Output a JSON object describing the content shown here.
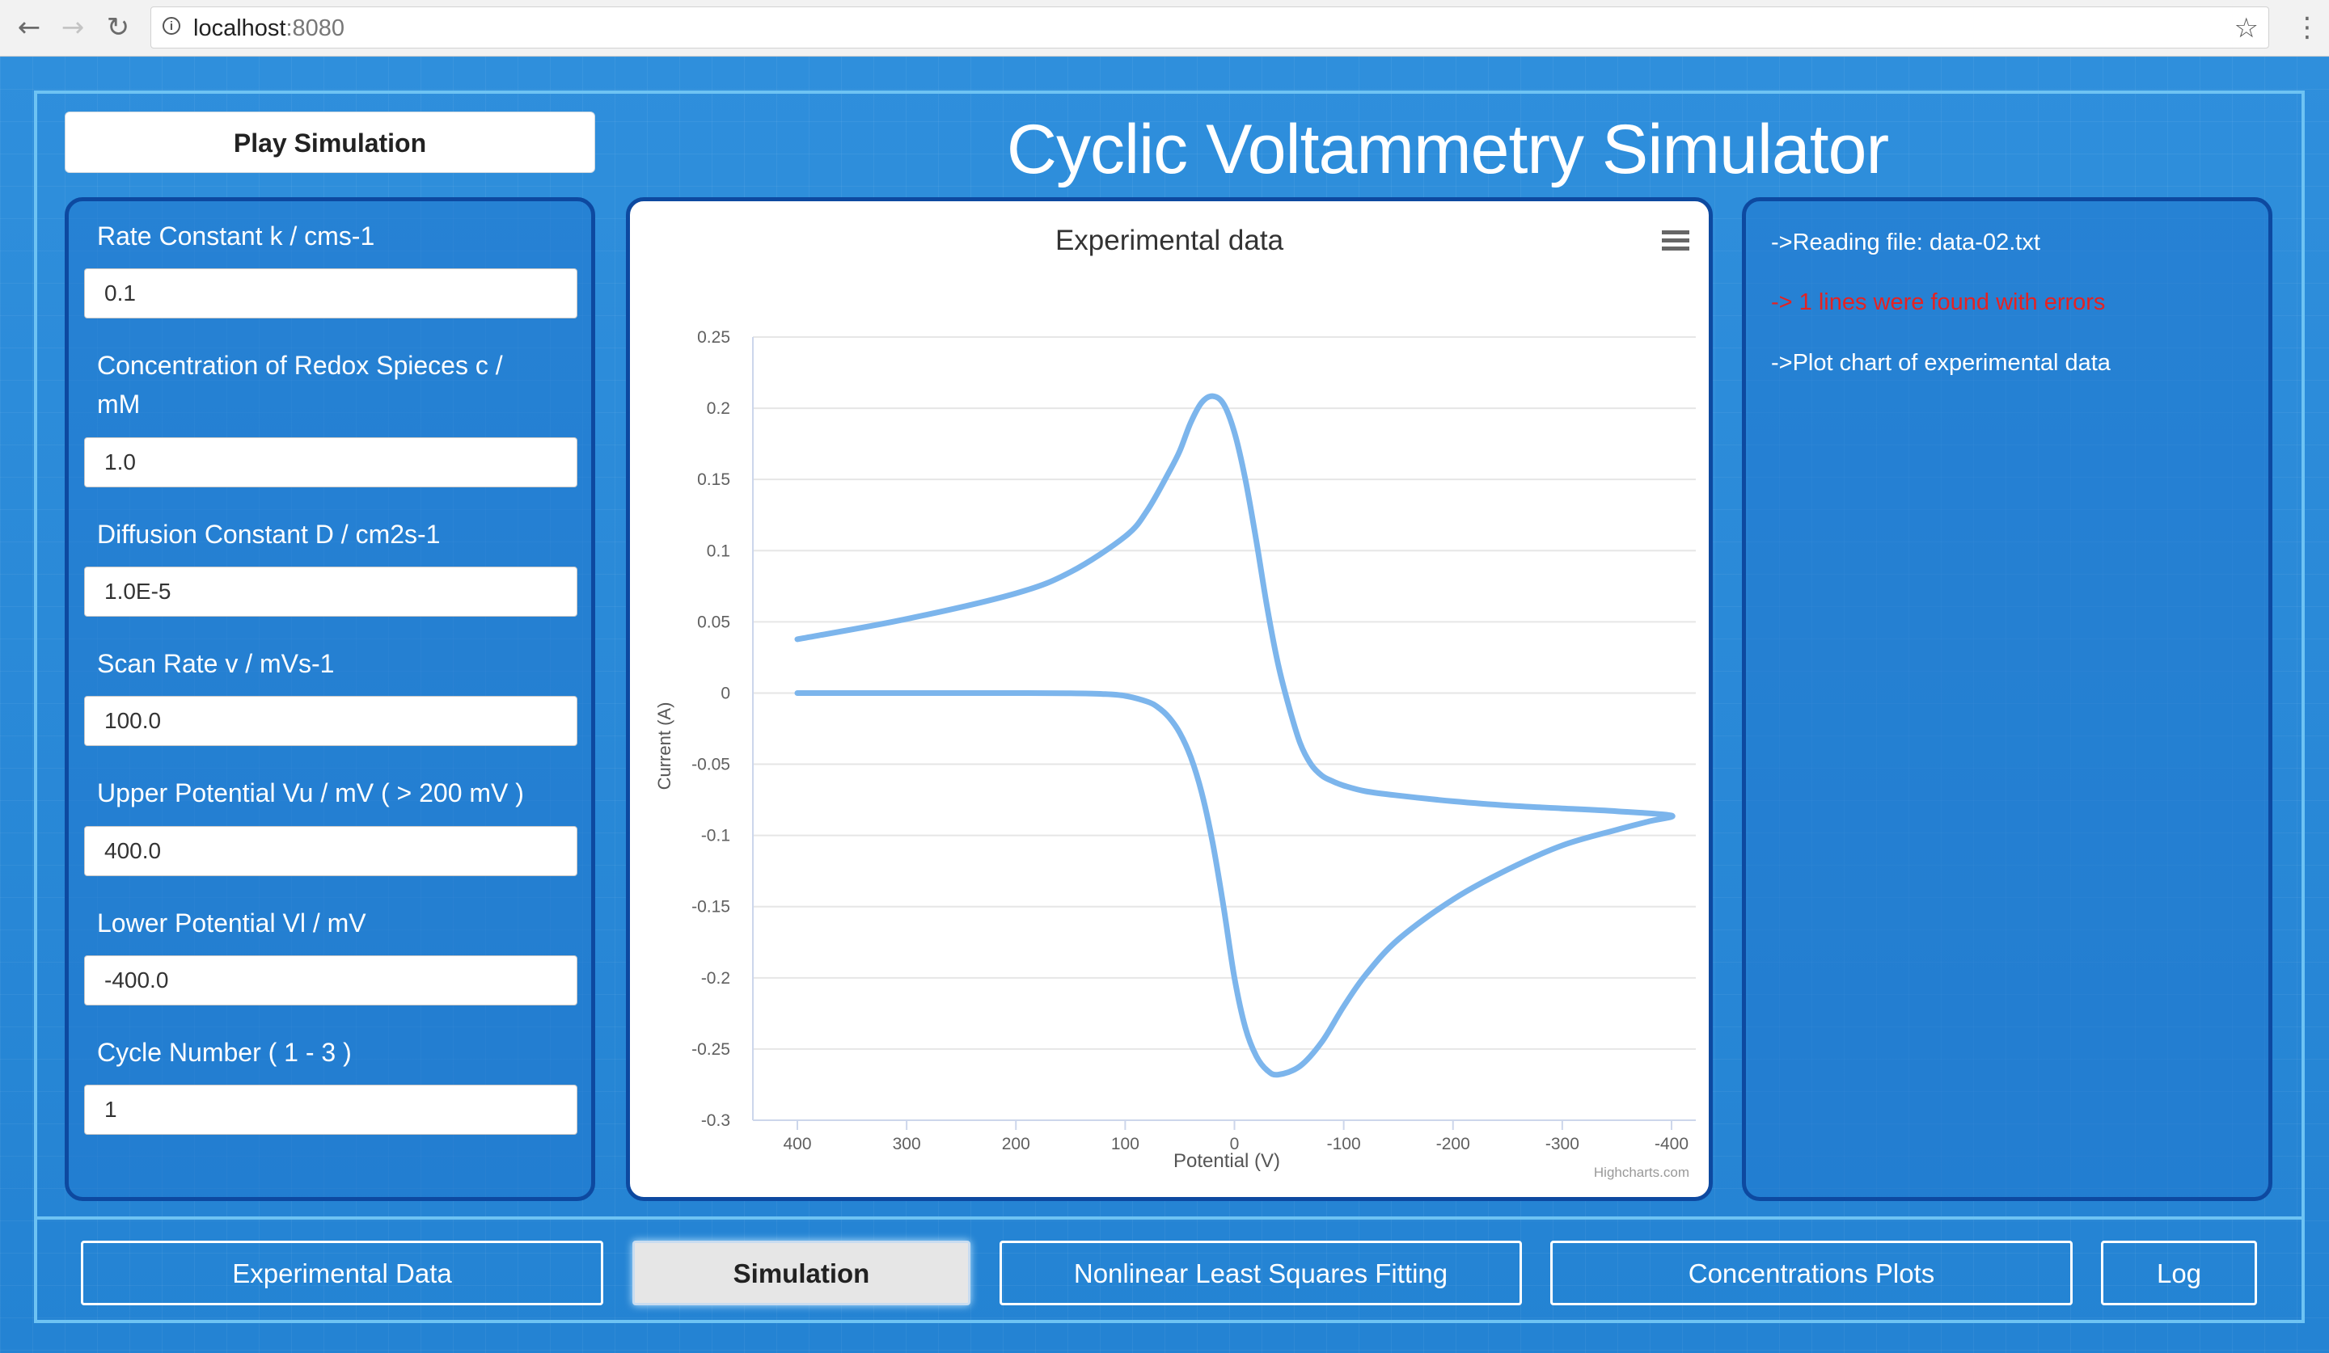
{
  "browser": {
    "url_host": "localhost",
    "url_port": ":8080",
    "back_icon": "←",
    "forward_icon": "→",
    "reload_icon": "↻",
    "bookmark_icon": "☆",
    "menu_icon": "⋮"
  },
  "header": {
    "play_label": "Play Simulation",
    "title": "Cyclic Voltammetry Simulator"
  },
  "params": [
    {
      "label": "Rate Constant k / cms-1",
      "value": "0.1"
    },
    {
      "label": "Concentration of Redox Spieces c / mM",
      "value": "1.0"
    },
    {
      "label": "Diffusion Constant D / cm2s-1",
      "value": "1.0E-5"
    },
    {
      "label": "Scan Rate v / mVs-1",
      "value": "100.0"
    },
    {
      "label": "Upper Potential Vu / mV ( > 200 mV )",
      "value": "400.0"
    },
    {
      "label": "Lower Potential Vl / mV",
      "value": "-400.0"
    },
    {
      "label": "Cycle Number ( 1 - 3 )",
      "value": "1"
    }
  ],
  "log": [
    {
      "text": "->Reading file: data-02.txt",
      "status": "info"
    },
    {
      "text": "-> 1 lines were found with errors",
      "status": "error"
    },
    {
      "text": "->Plot chart of experimental data",
      "status": "info"
    }
  ],
  "tabs": [
    {
      "label": "Experimental Data",
      "active": false
    },
    {
      "label": "Simulation",
      "active": true
    },
    {
      "label": "Nonlinear Least Squares Fitting",
      "active": false
    },
    {
      "label": "Concentrations Plots",
      "active": false
    },
    {
      "label": "Log",
      "active": false
    }
  ],
  "chart_data": {
    "type": "line",
    "title": "Experimental data",
    "xlabel": "Potential (V)",
    "ylabel": "Current (A)",
    "credit": "Highcharts.com",
    "x_reversed": true,
    "xlim": [
      -400,
      400
    ],
    "ylim": [
      -0.3,
      0.25
    ],
    "xticks": [
      400,
      300,
      200,
      100,
      0,
      -100,
      -200,
      -300,
      -400
    ],
    "xtick_labels": [
      "400",
      "300",
      "200",
      "100",
      "0",
      "-100",
      "-200",
      "-300",
      "-400"
    ],
    "yticks": [
      0.25,
      0.2,
      0.15,
      0.1,
      0.05,
      0,
      -0.05,
      -0.1,
      -0.15,
      -0.2,
      -0.25,
      -0.3
    ],
    "ytick_labels": [
      "0.25",
      "0.2",
      "0.15",
      "0.1",
      "0.05",
      "0",
      "-0.05",
      "-0.1",
      "-0.15",
      "-0.2",
      "-0.25",
      "-0.3"
    ],
    "grid": true,
    "legend": "none",
    "series": [
      {
        "color": "#7cb5ec",
        "x": [
          400,
          300,
          200,
          150,
          100,
          80,
          60,
          50,
          40,
          30,
          20,
          10,
          0,
          -10,
          -20,
          -30,
          -40,
          -50,
          -60,
          -70,
          -80,
          -90,
          -100,
          -120,
          -150,
          -200,
          -250,
          -300,
          -350,
          -400,
          -380,
          -350,
          -300,
          -250,
          -200,
          -150,
          -120,
          -100,
          -80,
          -60,
          -40,
          -30,
          -20,
          -10,
          0,
          10,
          20,
          30,
          40,
          50,
          60,
          70,
          80,
          100,
          120,
          150,
          200,
          300,
          400
        ],
        "y": [
          0.0378,
          0.052,
          0.07,
          0.085,
          0.11,
          0.128,
          0.155,
          0.17,
          0.19,
          0.204,
          0.2085,
          0.203,
          0.183,
          0.15,
          0.107,
          0.06,
          0.02,
          -0.01,
          -0.035,
          -0.05,
          -0.058,
          -0.062,
          -0.065,
          -0.069,
          -0.072,
          -0.076,
          -0.079,
          -0.081,
          -0.083,
          -0.086,
          -0.09,
          -0.096,
          -0.107,
          -0.124,
          -0.145,
          -0.173,
          -0.198,
          -0.22,
          -0.245,
          -0.262,
          -0.268,
          -0.265,
          -0.255,
          -0.235,
          -0.2,
          -0.15,
          -0.105,
          -0.07,
          -0.045,
          -0.028,
          -0.017,
          -0.01,
          -0.006,
          -0.002,
          -0.0007,
          -0.0002,
          0.0,
          0.0,
          0.0
        ]
      }
    ]
  }
}
